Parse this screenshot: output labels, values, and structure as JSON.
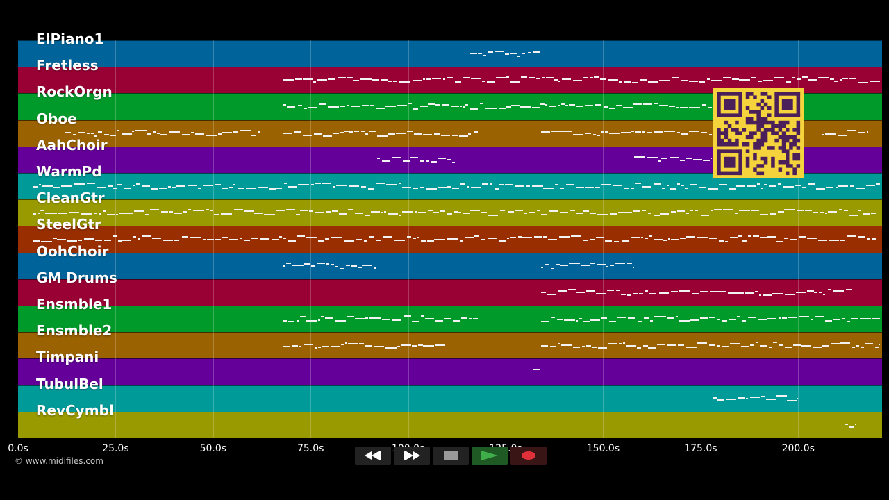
{
  "tracks": [
    {
      "label": "ElPiano1",
      "color": "#00649a"
    },
    {
      "label": "Fretless",
      "color": "#990033"
    },
    {
      "label": "RockOrgn",
      "color": "#009a2a"
    },
    {
      "label": "Oboe",
      "color": "#9a6200"
    },
    {
      "label": "AahChoir",
      "color": "#640099"
    },
    {
      "label": "WarmPd",
      "color": "#009a99"
    },
    {
      "label": "CleanGtr",
      "color": "#999900"
    },
    {
      "label": "SteelGtr",
      "color": "#992e00"
    },
    {
      "label": "OohChoir",
      "color": "#00649a"
    },
    {
      "label": "GM Drums",
      "color": "#990033"
    },
    {
      "label": "Ensmble1",
      "color": "#009a2a"
    },
    {
      "label": "Ensmble2",
      "color": "#9a6200"
    },
    {
      "label": "Timpani",
      "color": "#640099"
    },
    {
      "label": "TubulBel",
      "color": "#009a99"
    },
    {
      "label": "RevCymbl",
      "color": "#999900"
    }
  ],
  "timeline": {
    "ticks": [
      "0.0s",
      "25.0s",
      "50.0s",
      "75.0s",
      "100.0s",
      "125.0s",
      "150.0s",
      "175.0s",
      "200.0s"
    ],
    "tick_seconds": [
      0,
      25,
      50,
      75,
      100,
      125,
      150,
      175,
      200
    ],
    "duration_seconds": 221.5
  },
  "transport": {
    "rewind_icon": "rewind-icon",
    "fast_forward_icon": "fast-forward-icon",
    "stop_icon": "stop-icon",
    "play_icon": "play-icon",
    "record_icon": "record-icon",
    "record_color": "#e0303a",
    "play_color": "#3fae4a"
  },
  "credit": "© www.midifiles.com",
  "note_color": "#f2f2f2"
}
